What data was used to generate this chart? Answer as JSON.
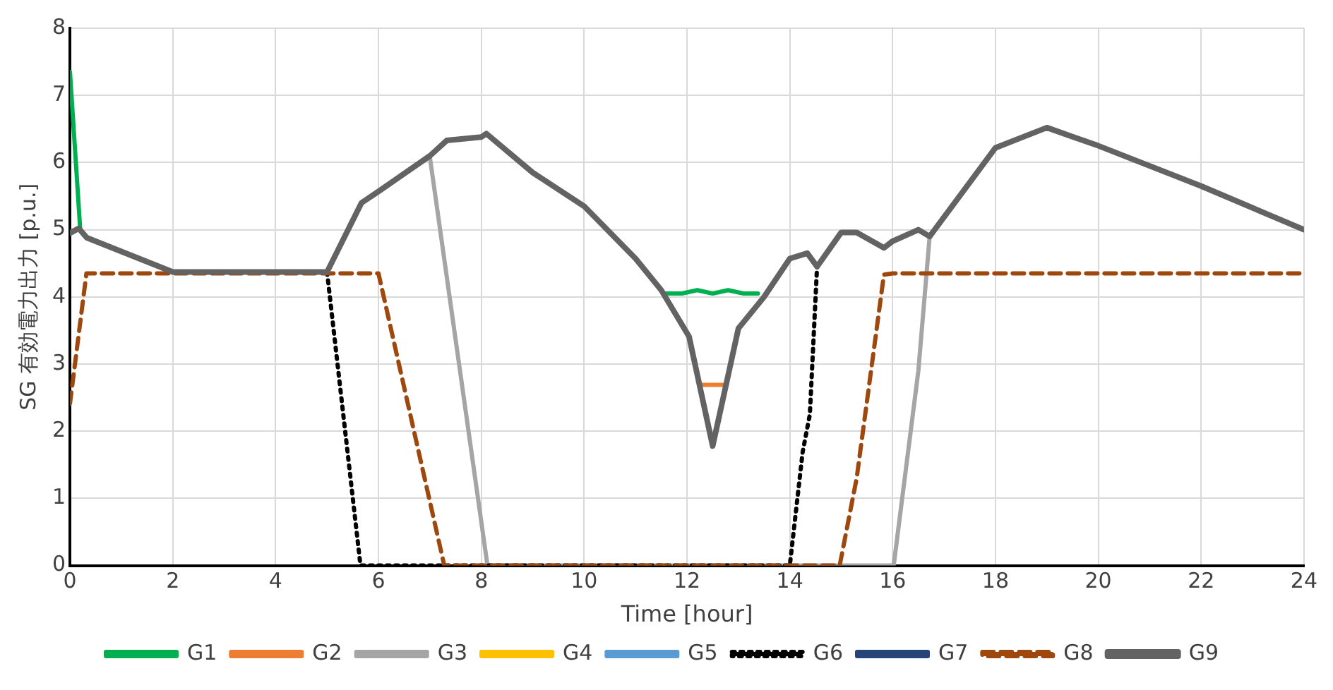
{
  "chart_data": {
    "type": "line",
    "xlabel": "Time [hour]",
    "ylabel": "SG 有効電力出力 [p.u.]",
    "xlim": [
      0,
      24
    ],
    "xticks": [
      0,
      2,
      4,
      6,
      8,
      10,
      12,
      14,
      16,
      18,
      20,
      22,
      24
    ],
    "ylim": [
      0,
      8
    ],
    "yticks": [
      0,
      1,
      2,
      3,
      4,
      5,
      6,
      7,
      8
    ],
    "grid": true,
    "legend": "bottom",
    "marker": "none",
    "series": [
      {
        "name": "G1",
        "color": "#00b050",
        "x": [
          0,
          0.2,
          6,
          11.56,
          11.9,
          12.2,
          12.5,
          12.8,
          13.1,
          13.38
        ],
        "values": [
          7.35,
          5.0,
          null,
          4.05,
          4.05,
          4.1,
          4.05,
          4.1,
          4.05,
          4.05
        ]
      },
      {
        "name": "G2",
        "color": "#ed7d31",
        "x": [
          12.28,
          12.71
        ],
        "values": [
          2.69,
          2.69
        ]
      },
      {
        "name": "G3",
        "color": "#a5a5a5",
        "x": [
          7,
          8.12,
          16.02,
          16.5,
          16.72
        ],
        "values": [
          6.08,
          0,
          0,
          2.9,
          4.9
        ]
      },
      {
        "name": "G4",
        "color": "#ffc000"
      },
      {
        "name": "G5",
        "color": "#5b9bd5"
      },
      {
        "name": "G6",
        "color": "#000000",
        "line_style": "dotted",
        "x": [
          5,
          5.65,
          14.0,
          14.25,
          14.39,
          14.53
        ],
        "values": [
          4.37,
          0,
          0,
          1.69,
          2.25,
          4.45
        ]
      },
      {
        "name": "G7",
        "color": "#264478"
      },
      {
        "name": "G8",
        "color": "#9e480e",
        "line_style": "dashed",
        "x": [
          0,
          0.32,
          6.0,
          7.28,
          14.97,
          15.3,
          15.83,
          16.0,
          24
        ],
        "values": [
          2.41,
          4.35,
          4.35,
          0,
          0,
          1.3,
          4.33,
          4.35,
          4.35
        ]
      },
      {
        "name": "G9",
        "color": "#636363",
        "x": [
          0,
          0.17,
          0.33,
          2,
          5,
          5.67,
          6,
          7,
          7.33,
          8,
          8.1,
          9,
          10,
          11,
          11.5,
          12.04,
          12.5,
          13,
          13.5,
          14,
          14.34,
          14.53,
          15,
          15.3,
          15.83,
          16,
          16.5,
          16.72,
          18,
          19,
          20,
          22,
          24
        ],
        "values": [
          4.95,
          5.02,
          4.88,
          4.37,
          4.37,
          5.4,
          5.57,
          6.1,
          6.33,
          6.38,
          6.43,
          5.85,
          5.35,
          4.57,
          4.1,
          3.41,
          1.78,
          3.53,
          4.0,
          4.57,
          4.65,
          4.45,
          4.96,
          4.96,
          4.73,
          4.83,
          5.0,
          4.9,
          6.22,
          6.52,
          6.25,
          5.65,
          5.0
        ]
      }
    ]
  }
}
